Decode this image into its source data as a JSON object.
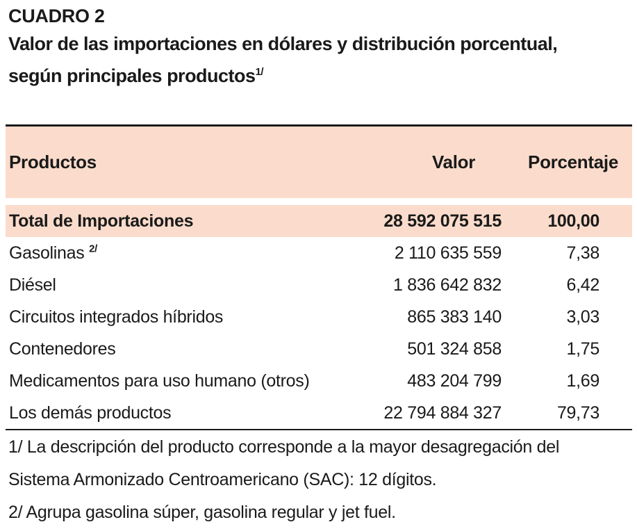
{
  "document": {
    "label": "CUADRO 2",
    "title_line1": "Valor de las importaciones en dólares y distribución porcentual,",
    "title_line2": "según principales productos",
    "title_note": "1/"
  },
  "table": {
    "headers": {
      "products": "Productos",
      "value": "Valor",
      "percent": "Porcentaje"
    },
    "total": {
      "name": "Total de Importaciones",
      "value": "28 592 075 515",
      "percent": "100,00"
    },
    "rows": [
      {
        "name": "Gasolinas",
        "note": "2/",
        "value": "2 110 635 559",
        "percent": "7,38"
      },
      {
        "name": "Diésel",
        "note": "",
        "value": "1 836 642 832",
        "percent": "6,42"
      },
      {
        "name": "Circuitos integrados híbridos",
        "note": "",
        "value": "865 383 140",
        "percent": "3,03"
      },
      {
        "name": "Contenedores",
        "note": "",
        "value": "501 324 858",
        "percent": "1,75"
      },
      {
        "name": "Medicamentos para uso humano (otros)",
        "note": "",
        "value": "483 204 799",
        "percent": "1,69"
      },
      {
        "name": "Los demás productos",
        "note": "",
        "value": "22 794 884 327",
        "percent": "79,73"
      }
    ]
  },
  "notes": {
    "note1_line1": "1/ La descripción del producto corresponde a la mayor desagregación del",
    "note1_line2": "Sistema Armonizado Centroamericano (SAC): 12 dígitos.",
    "note2": "2/ Agrupa gasolina súper, gasolina regular y jet fuel."
  }
}
